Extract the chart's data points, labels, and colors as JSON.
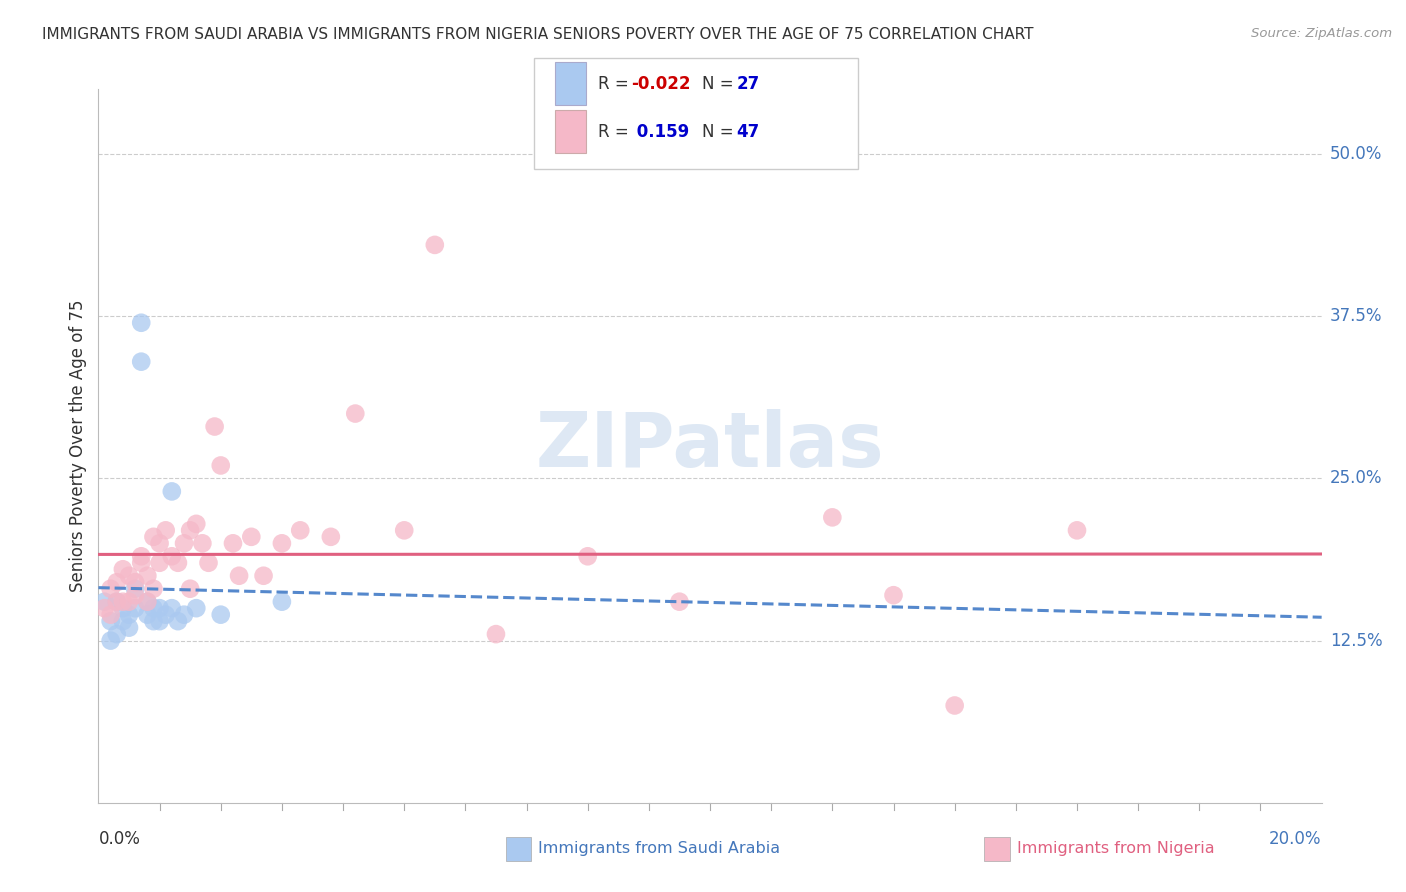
{
  "title": "IMMIGRANTS FROM SAUDI ARABIA VS IMMIGRANTS FROM NIGERIA SENIORS POVERTY OVER THE AGE OF 75 CORRELATION CHART",
  "source": "Source: ZipAtlas.com",
  "ylabel": "Seniors Poverty Over the Age of 75",
  "xlim": [
    0.0,
    0.2
  ],
  "ylim": [
    0.0,
    0.55
  ],
  "yticks": [
    0.125,
    0.25,
    0.375,
    0.5
  ],
  "ytick_labels": [
    "12.5%",
    "25.0%",
    "37.5%",
    "50.0%"
  ],
  "saudi_R": -0.022,
  "saudi_N": 27,
  "nigeria_R": 0.159,
  "nigeria_N": 47,
  "saudi_color": "#aac9f0",
  "nigeria_color": "#f5b8c8",
  "saudi_line_color": "#5588cc",
  "nigeria_line_color": "#e06080",
  "background_color": "#ffffff",
  "grid_color": "#cccccc",
  "saudi_scatter_x": [
    0.001,
    0.002,
    0.002,
    0.003,
    0.003,
    0.004,
    0.004,
    0.005,
    0.005,
    0.006,
    0.006,
    0.007,
    0.007,
    0.008,
    0.008,
    0.009,
    0.009,
    0.01,
    0.01,
    0.011,
    0.012,
    0.013,
    0.014,
    0.016,
    0.02,
    0.03,
    0.012
  ],
  "saudi_scatter_y": [
    0.155,
    0.14,
    0.125,
    0.155,
    0.13,
    0.15,
    0.14,
    0.145,
    0.135,
    0.15,
    0.165,
    0.37,
    0.34,
    0.155,
    0.145,
    0.15,
    0.14,
    0.15,
    0.14,
    0.145,
    0.15,
    0.14,
    0.145,
    0.15,
    0.145,
    0.155,
    0.24
  ],
  "nigeria_scatter_x": [
    0.001,
    0.002,
    0.002,
    0.003,
    0.003,
    0.004,
    0.004,
    0.005,
    0.005,
    0.006,
    0.006,
    0.007,
    0.007,
    0.008,
    0.008,
    0.009,
    0.009,
    0.01,
    0.01,
    0.011,
    0.012,
    0.013,
    0.014,
    0.015,
    0.015,
    0.016,
    0.017,
    0.018,
    0.019,
    0.02,
    0.022,
    0.023,
    0.025,
    0.027,
    0.03,
    0.033,
    0.038,
    0.042,
    0.05,
    0.055,
    0.065,
    0.08,
    0.095,
    0.12,
    0.14,
    0.16,
    0.13
  ],
  "nigeria_scatter_y": [
    0.15,
    0.145,
    0.165,
    0.155,
    0.17,
    0.155,
    0.18,
    0.155,
    0.175,
    0.16,
    0.17,
    0.185,
    0.19,
    0.175,
    0.155,
    0.165,
    0.205,
    0.185,
    0.2,
    0.21,
    0.19,
    0.185,
    0.2,
    0.21,
    0.165,
    0.215,
    0.2,
    0.185,
    0.29,
    0.26,
    0.2,
    0.175,
    0.205,
    0.175,
    0.2,
    0.21,
    0.205,
    0.3,
    0.21,
    0.43,
    0.13,
    0.19,
    0.155,
    0.22,
    0.075,
    0.21,
    0.16
  ]
}
